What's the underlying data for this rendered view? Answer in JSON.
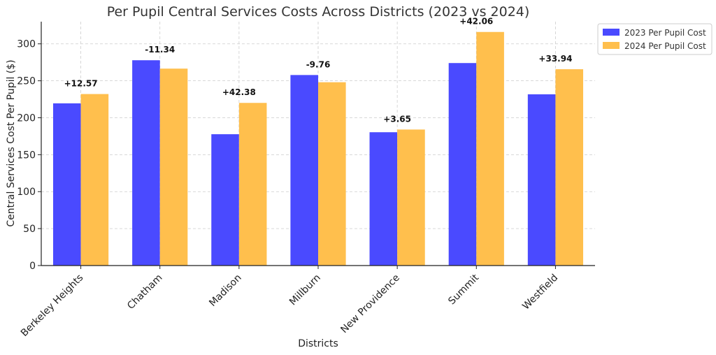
{
  "chart_data": {
    "type": "bar",
    "title": "Per Pupil Central Services Costs Across Districts (2023 vs 2024)",
    "xlabel": "Districts",
    "ylabel": "Central Services Cost Per Pupil ($)",
    "ylim": [
      0,
      330
    ],
    "yticks": [
      0,
      50,
      100,
      150,
      200,
      250,
      300
    ],
    "grid": true,
    "legend_position": "top-right",
    "categories": [
      "Berkeley Heights",
      "Chatham",
      "Madison",
      "Millburn",
      "New Providence",
      "Summit",
      "Westfield"
    ],
    "series": [
      {
        "name": "2023 Per Pupil Cost",
        "color": "#4a4aff",
        "values": [
          219.5,
          277.8,
          177.7,
          257.8,
          180.4,
          274.0,
          231.7
        ]
      },
      {
        "name": "2024 Per Pupil Cost",
        "color": "#ffbf4d",
        "values": [
          232.07,
          266.46,
          220.08,
          248.04,
          184.05,
          316.06,
          265.64
        ]
      }
    ],
    "annotations": [
      "+12.57",
      "-11.34",
      "+42.38",
      "-9.76",
      "+3.65",
      "+42.06",
      "+33.94"
    ]
  }
}
